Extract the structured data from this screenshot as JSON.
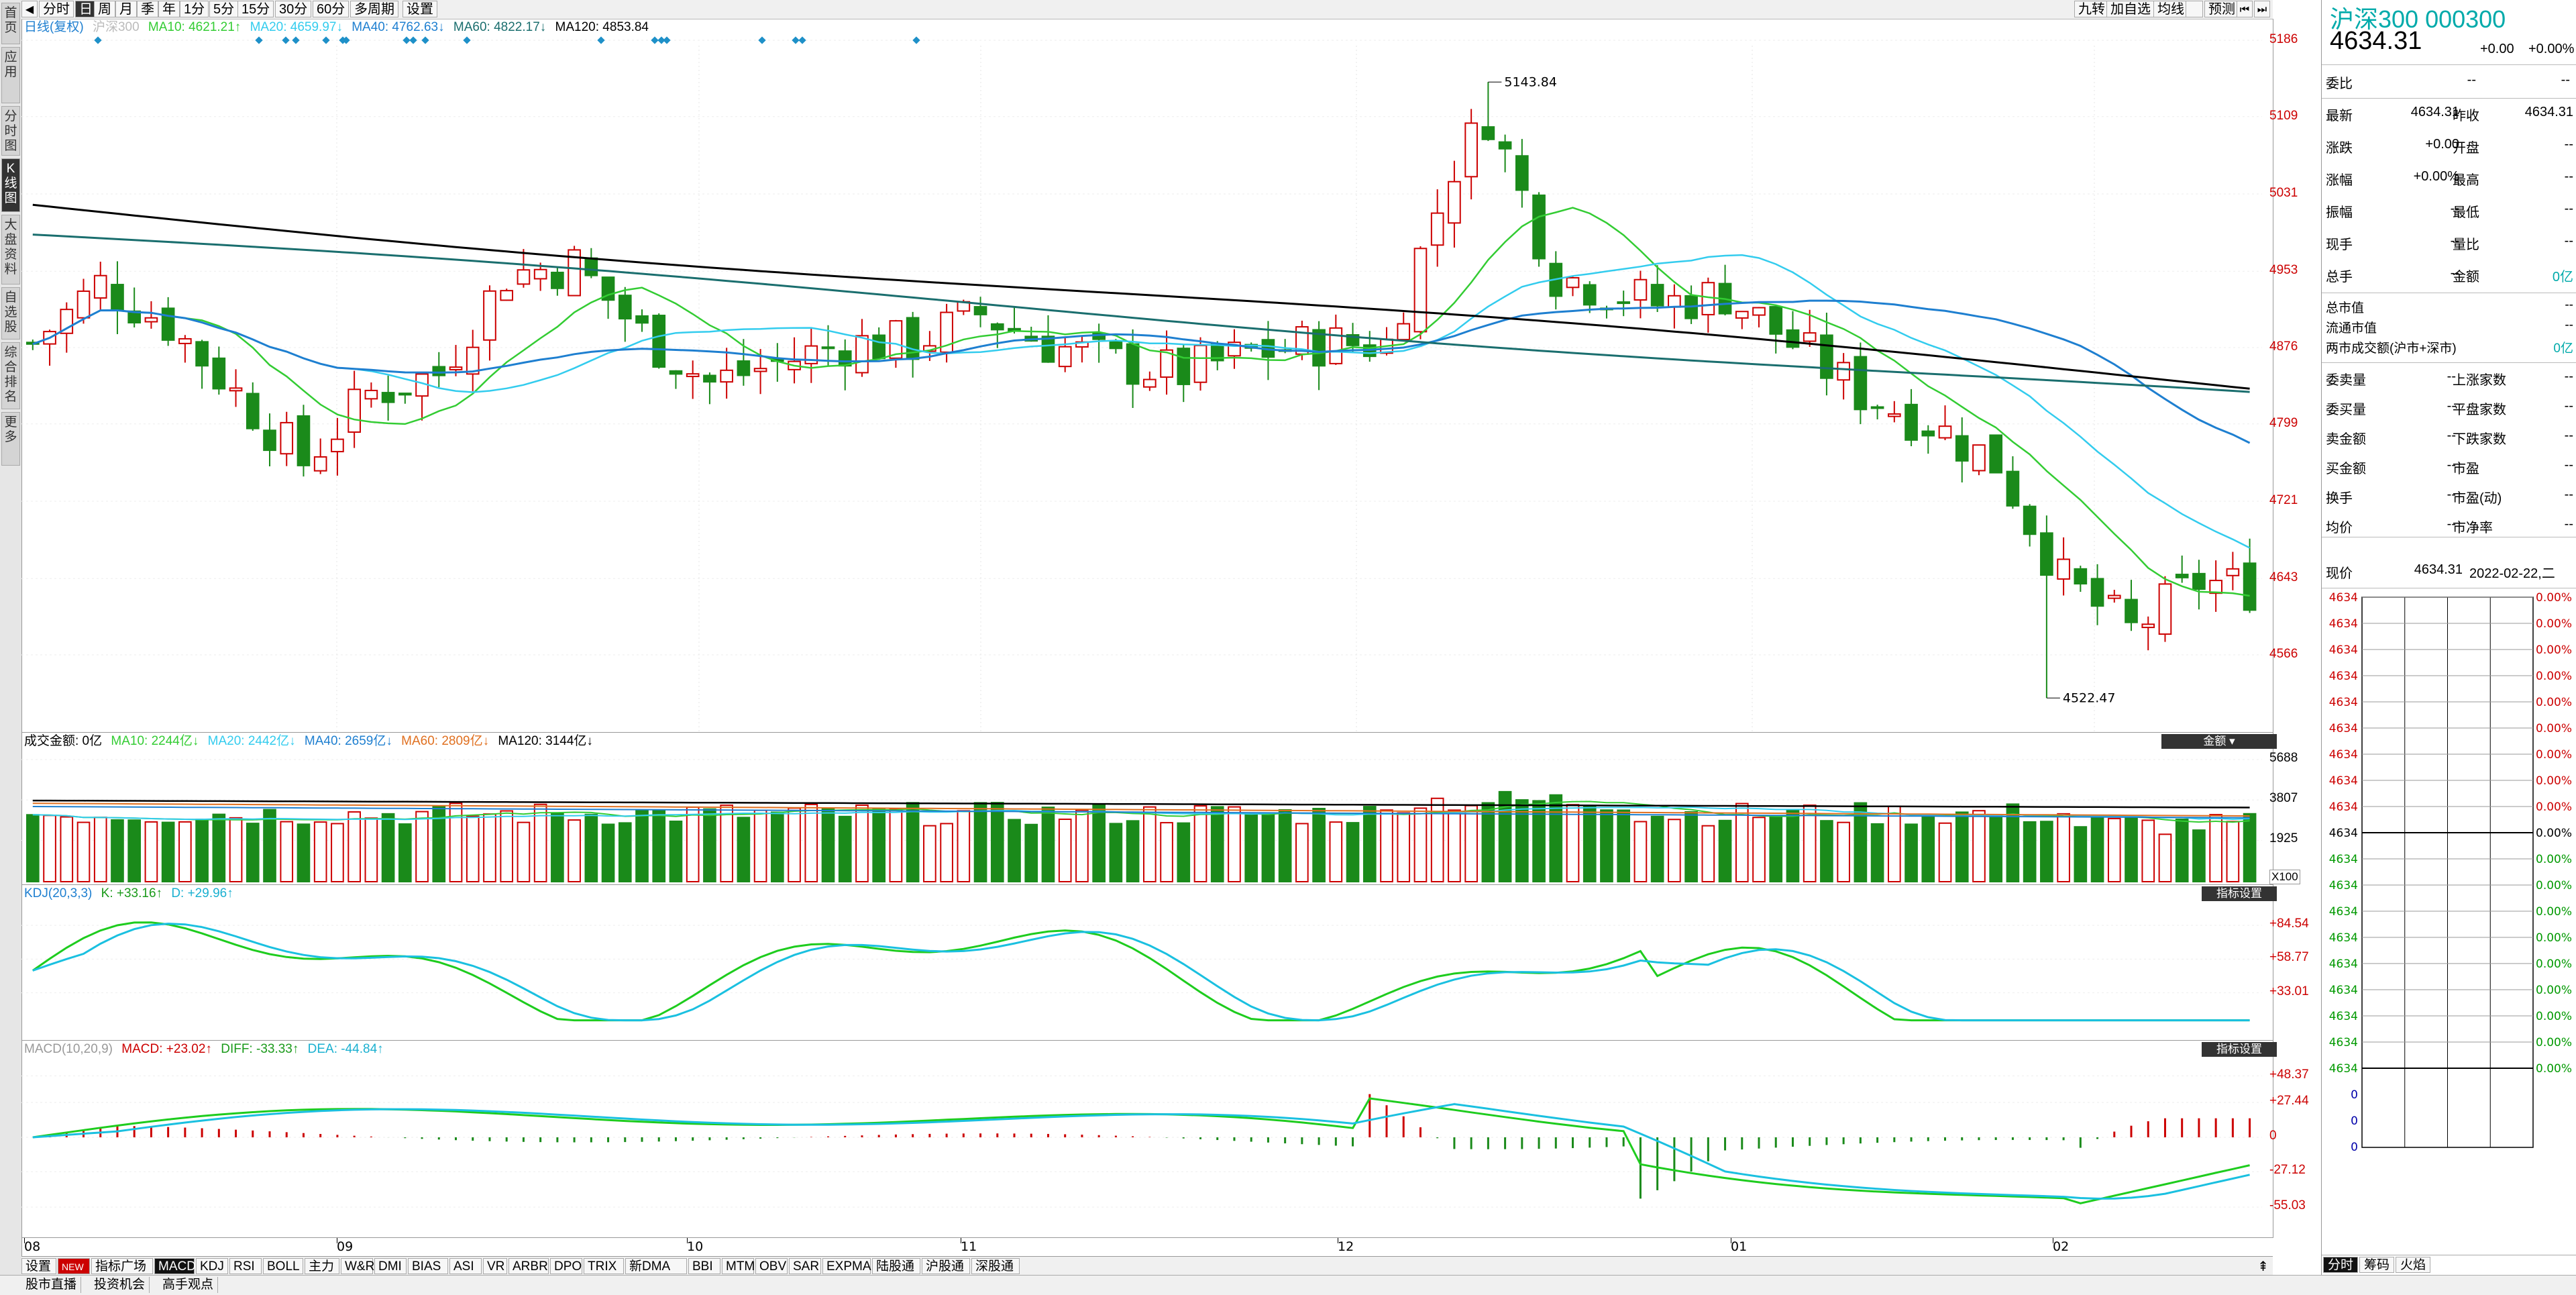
{
  "toolbar": {
    "left_items": [
      "分时",
      "日",
      "周",
      "月",
      "季",
      "年",
      "1分",
      "5分",
      "15分",
      "30分",
      "60分",
      "多周期",
      "设置"
    ],
    "active_item": "日",
    "right_items": [
      "九转",
      "加自选",
      "均线",
      "",
      "预测"
    ]
  },
  "sidebar": {
    "items": [
      "首页",
      "应用",
      "分时图",
      "K线图",
      "大盘资料",
      "自选股",
      "综合排名",
      "更多"
    ],
    "active": "K线图"
  },
  "price_chart": {
    "legend": {
      "period": "日线(复权)",
      "symbol": "沪深300",
      "ma10": "MA10: 4621.21↑",
      "ma20": "MA20: 4659.97↓",
      "ma40": "MA40: 4762.63↓",
      "ma60": "MA60: 4822.17↓",
      "ma120": "MA120: 4853.84"
    },
    "y_ticks": [
      "5186",
      "5109",
      "5031",
      "4953",
      "4876",
      "4799",
      "4721",
      "4643",
      "4566"
    ],
    "high_label": "5143.84",
    "low_label": "4522.47",
    "x_labels": [
      "08",
      "09",
      "10",
      "11",
      "12",
      "01",
      "02"
    ]
  },
  "volume_chart": {
    "legend": {
      "title": "成交金额: 0亿",
      "ma10": "MA10: 2244亿↓",
      "ma20": "MA20: 2442亿↓",
      "ma40": "MA40: 2659亿↓",
      "ma60": "MA60: 2809亿↓",
      "ma120": "MA120: 3144亿↓"
    },
    "badge": "金额",
    "y_ticks": [
      "5688",
      "3807",
      "1925"
    ],
    "unit": "X100"
  },
  "kdj_chart": {
    "legend": {
      "title": "KDJ(20,3,3)",
      "k": "K: +33.16↑",
      "d": "D: +29.96↑"
    },
    "badge": "指标设置",
    "y_ticks": [
      "+84.54",
      "+58.77",
      "+33.01"
    ]
  },
  "macd_chart": {
    "legend": {
      "title": "MACD(10,20,9)",
      "macd": "MACD: +23.02↑",
      "diff": "DIFF: -33.33↑",
      "dea": "DEA: -44.84↑"
    },
    "badge": "指标设置",
    "y_ticks": [
      "+48.37",
      "+27.44",
      "0",
      "-27.12",
      "-55.03"
    ]
  },
  "indicator_tabs": [
    "设置",
    "NEW",
    "指标广场",
    "MACD",
    "KDJ",
    "RSI",
    "BOLL",
    "主力",
    "W&R",
    "DMI",
    "BIAS",
    "ASI",
    "VR",
    "ARBR",
    "DPO",
    "TRIX",
    "新DMA",
    "BBI",
    "MTM",
    "OBV",
    "SAR",
    "EXPMA",
    "陆股通",
    "沪股通",
    "深股通"
  ],
  "active_indicator_tab": "MACD",
  "status_bar": [
    "股市直播",
    "投资机会",
    "高手观点"
  ],
  "right_panel": {
    "title": "沪深300 000300",
    "price": "4634.31",
    "change": "+0.00",
    "change_pct": "+0.00%",
    "webi_label": "委比",
    "webi_val1": "--",
    "webi_val2": "--",
    "rows": [
      {
        "l1": "最新",
        "v1": "4634.31",
        "l2": "昨收",
        "v2": "4634.31"
      },
      {
        "l1": "涨跌",
        "v1": "+0.00",
        "l2": "开盘",
        "v2": "--"
      },
      {
        "l1": "涨幅",
        "v1": "+0.00%",
        "l2": "最高",
        "v2": "--"
      },
      {
        "l1": "振幅",
        "v1": "--",
        "l2": "最低",
        "v2": "--"
      },
      {
        "l1": "现手",
        "v1": "--",
        "l2": "量比",
        "v2": "--"
      },
      {
        "l1": "总手",
        "v1": "--",
        "l2": "金额",
        "v2": "0亿"
      }
    ],
    "mkt_rows": [
      {
        "l": "总市值",
        "v": "--"
      },
      {
        "l": "流通市值",
        "v": "--"
      },
      {
        "l": "两市成交额(沪市+深市)",
        "v": "0亿"
      }
    ],
    "breadth_rows": [
      {
        "l1": "委卖量",
        "v1": "--",
        "l2": "上涨家数",
        "v2": "--"
      },
      {
        "l1": "委买量",
        "v1": "--",
        "l2": "平盘家数",
        "v2": "--"
      },
      {
        "l1": "卖金额",
        "v1": "--",
        "l2": "下跌家数",
        "v2": "--"
      },
      {
        "l1": "买金额",
        "v1": "--",
        "l2": "市盈",
        "v2": "--"
      },
      {
        "l1": "换手",
        "v1": "--",
        "l2": "市盈(动)",
        "v2": "--"
      },
      {
        "l1": "均价",
        "v1": "--",
        "l2": "市净率",
        "v2": "--"
      }
    ],
    "now_label": "现价",
    "now_price": "4634.31",
    "now_date": "2022-02-22,二",
    "mini_price": "4634",
    "mini_pct": "0.00%",
    "mini_zero": "0",
    "bottom_tabs": [
      "分时",
      "筹码",
      "火焰"
    ],
    "active_bottom_tab": "分时"
  },
  "colors": {
    "up": "#cc0000",
    "down": "#1a8a1a",
    "ma10": "#33cc33",
    "ma20": "#33ccee",
    "ma40": "#1e7fd0",
    "ma60": "#1a6e6e",
    "ma120": "#000000"
  }
}
